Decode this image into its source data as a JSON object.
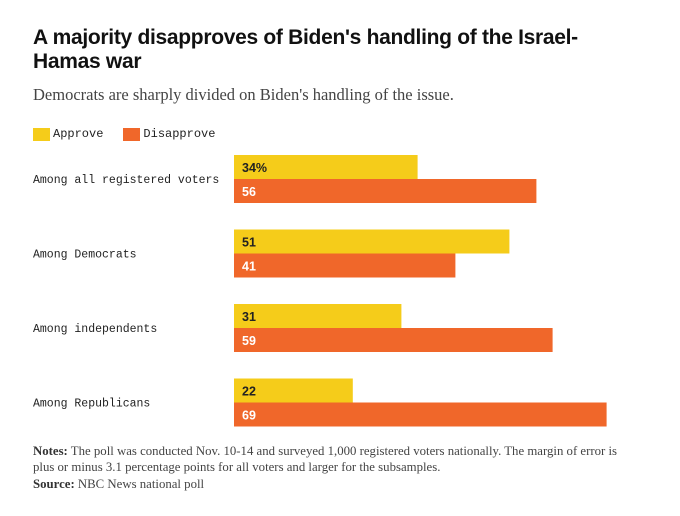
{
  "title": "A majority disapproves of Biden's handling of the Israel-Hamas war",
  "subtitle": "Democrats are sharply divided on Biden's handling of the issue.",
  "notes_label": "Notes:",
  "notes_text": "The poll was conducted Nov. 10-14 and surveyed 1,000 registered voters nationally. The margin of error is plus or minus 3.1 percentage points for all voters and larger for the subsamples.",
  "source_label": "Source:",
  "source_text": "NBC News national poll",
  "colors": {
    "approve": "#f5cc1a",
    "disapprove": "#f0672a"
  },
  "chart_data": {
    "type": "bar",
    "orientation": "horizontal",
    "categories": [
      "Among all registered voters",
      "Among Democrats",
      "Among independents",
      "Among Republicans"
    ],
    "series": [
      {
        "name": "Approve",
        "values": [
          34,
          51,
          31,
          22
        ],
        "labels": [
          "34%",
          "51",
          "31",
          "22"
        ]
      },
      {
        "name": "Disapprove",
        "values": [
          56,
          41,
          59,
          69
        ],
        "labels": [
          "56",
          "41",
          "59",
          "69"
        ]
      }
    ],
    "legend_position": "top-left",
    "grid": false
  }
}
